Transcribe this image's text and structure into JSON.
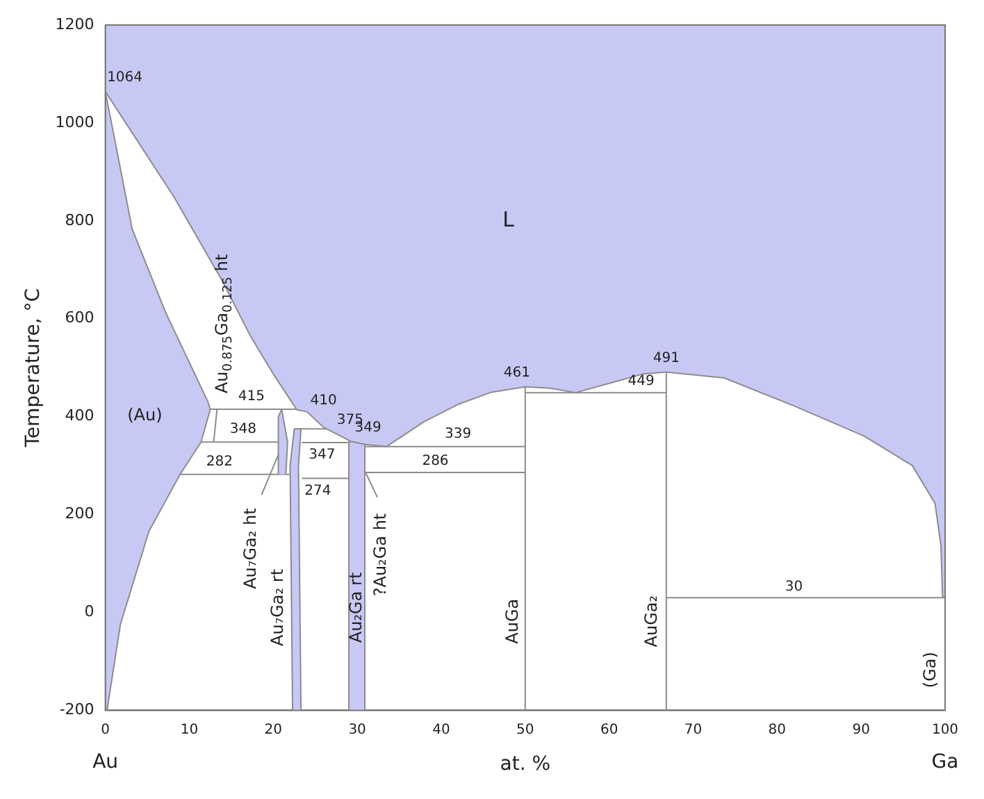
{
  "chart_data": {
    "type": "line",
    "ylabel": "Temperature, °C",
    "xlabel": "at. %",
    "xlim": [
      0,
      100
    ],
    "ylim": [
      -200,
      1200
    ],
    "xticks": [
      0,
      10,
      20,
      30,
      40,
      50,
      60,
      70,
      80,
      90,
      100
    ],
    "yticks": [
      -200,
      0,
      200,
      400,
      600,
      800,
      1000,
      1200
    ],
    "legend": false,
    "grid": false,
    "marker": "none",
    "series": [
      {
        "type": "area",
        "color": "#c8c8f5",
        "x": [
          0,
          0,
          8.2,
          13.9,
          17.3,
          20,
          22.8,
          24,
          26,
          29.3,
          31,
          33.5,
          38,
          42,
          46,
          50,
          53,
          56,
          60,
          64,
          66.8,
          73.7,
          82,
          90.4,
          96.1,
          98.8,
          99.5,
          99.7,
          100,
          100
        ],
        "values": [
          1200,
          1064,
          848,
          678,
          564,
          487,
          414,
          410,
          378,
          349,
          343,
          339,
          390,
          425,
          450,
          461,
          458,
          449,
          468,
          487,
          491,
          479,
          422,
          360,
          300,
          223,
          138,
          33,
          30,
          1200
        ]
      },
      {
        "type": "area",
        "color": "#c8c8f5",
        "x": [
          0,
          0,
          3.2,
          7.2,
          12.2,
          12.5,
          11.4,
          8.9,
          5.2,
          1.8,
          0.2
        ],
        "values": [
          -200,
          1064,
          783,
          612,
          431,
          415,
          348,
          282,
          166,
          -24,
          -200
        ]
      },
      {
        "type": "area",
        "color": "#c8c8f5",
        "x": [
          22.3,
          22,
          22.5,
          23.3,
          23,
          23.3
        ],
        "values": [
          -200,
          300,
          375,
          375,
          300,
          -200
        ]
      },
      {
        "type": "area",
        "color": "#c8c8f5",
        "x": [
          29,
          29,
          30.9,
          30.9
        ],
        "values": [
          -200,
          349,
          349,
          -200
        ]
      },
      {
        "type": "area",
        "color": "#c8c8f5",
        "x": [
          20.6,
          20.6,
          21,
          21.7,
          21.5
        ],
        "values": [
          282,
          400,
          415,
          348,
          282
        ]
      },
      {
        "type": "line",
        "color": "#8c8c8c",
        "x": [
          12.5,
          24
        ],
        "values": [
          415,
          415
        ]
      },
      {
        "type": "line",
        "color": "#8c8c8c",
        "x": [
          22.6,
          27.5
        ],
        "values": [
          375,
          375
        ]
      },
      {
        "type": "line",
        "color": "#8c8c8c",
        "x": [
          11.4,
          21
        ],
        "values": [
          348,
          348
        ]
      },
      {
        "type": "line",
        "color": "#8c8c8c",
        "x": [
          23.4,
          29.3
        ],
        "values": [
          347,
          347
        ]
      },
      {
        "type": "line",
        "color": "#8c8c8c",
        "x": [
          30.9,
          50
        ],
        "values": [
          339,
          339
        ]
      },
      {
        "type": "line",
        "color": "#8c8c8c",
        "x": [
          8.9,
          22.2
        ],
        "values": [
          282,
          282
        ]
      },
      {
        "type": "line",
        "color": "#8c8c8c",
        "x": [
          23.4,
          29.3
        ],
        "values": [
          274,
          274
        ]
      },
      {
        "type": "line",
        "color": "#8c8c8c",
        "x": [
          30.9,
          50
        ],
        "values": [
          286,
          286
        ]
      },
      {
        "type": "line",
        "color": "#8c8c8c",
        "x": [
          50,
          66.8
        ],
        "values": [
          449,
          449
        ]
      },
      {
        "type": "line",
        "color": "#8c8c8c",
        "x": [
          66.8,
          100
        ],
        "values": [
          30,
          30
        ]
      },
      {
        "type": "line",
        "color": "#8c8c8c",
        "x": [
          50,
          50
        ],
        "values": [
          -200,
          461
        ]
      },
      {
        "type": "line",
        "color": "#8c8c8c",
        "x": [
          66.8,
          66.8
        ],
        "values": [
          -200,
          491
        ]
      },
      {
        "type": "line",
        "color": "#8c8c8c",
        "x": [
          13.3,
          12.9
        ],
        "values": [
          415,
          348
        ]
      },
      {
        "type": "line",
        "color": "#8c8c8c",
        "x": [
          18.6,
          20.8
        ],
        "values": [
          240,
          330
        ]
      },
      {
        "type": "line",
        "color": "#8c8c8c",
        "x": [
          32.4,
          30.6
        ],
        "values": [
          235,
          300
        ]
      }
    ],
    "annotations": [
      {
        "text": "1064",
        "x": 0,
        "y": 1064
      },
      {
        "text": "415",
        "x": 17.4,
        "y": 415
      },
      {
        "text": "410",
        "x": 24,
        "y": 410
      },
      {
        "text": "375",
        "x": 27.5,
        "y": 375
      },
      {
        "text": "349",
        "x": 29.3,
        "y": 349
      },
      {
        "text": "339",
        "x": 42,
        "y": 339
      },
      {
        "text": "348",
        "x": 16.4,
        "y": 348
      },
      {
        "text": "347",
        "x": 25.8,
        "y": 347
      },
      {
        "text": "282",
        "x": 13.6,
        "y": 282
      },
      {
        "text": "286",
        "x": 39.3,
        "y": 286
      },
      {
        "text": "274",
        "x": 25.3,
        "y": 274
      },
      {
        "text": "461",
        "x": 50,
        "y": 461
      },
      {
        "text": "449",
        "x": 63.8,
        "y": 449
      },
      {
        "text": "491",
        "x": 66.8,
        "y": 491
      },
      {
        "text": "30",
        "x": 82,
        "y": 30
      },
      "L",
      "(Au)",
      "Au$_{0.875}$Ga$_{0.125}$ ht",
      "Au₇Ga₂ ht",
      "Au₇Ga₂ rt",
      "Au₂Ga rt",
      "?Au₂Ga ht",
      "AuGa",
      "AuGa₂",
      "(Ga)",
      "Au",
      "Ga"
    ]
  }
}
